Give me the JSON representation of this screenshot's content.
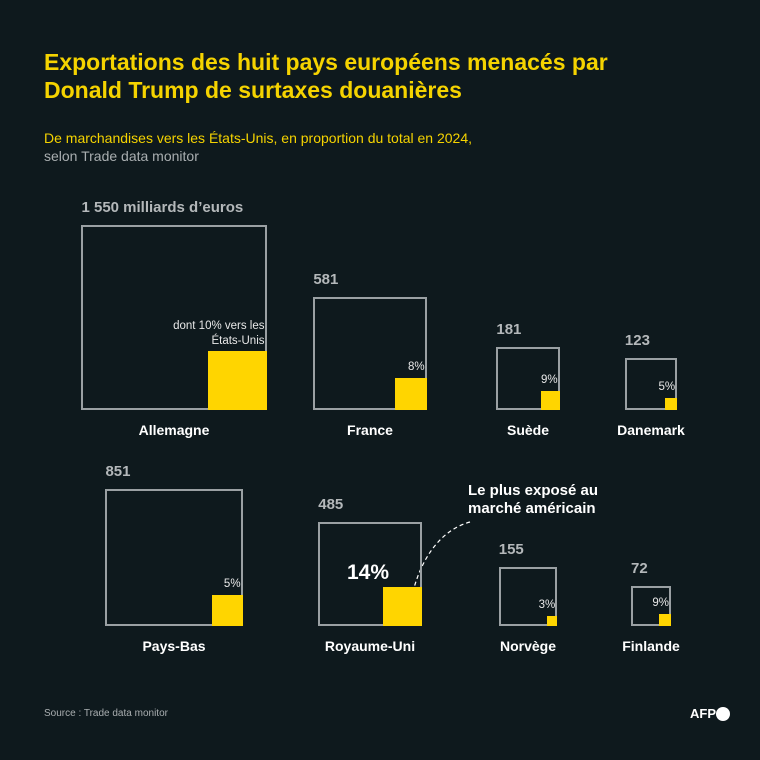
{
  "chart_data": {
    "type": "square",
    "title": "Exportations des huit pays européens menacés par Donald Trump de surtaxes douanières",
    "subtitle": "De marchandises vers les États-Unis, en proportion du total en 2024,",
    "subtitle_source": "selon Trade data monitor",
    "categories": [
      "Allemagne",
      "France",
      "Suède",
      "Danemark",
      "Pays-Bas",
      "Royaume-Uni",
      "Norvège",
      "Finlande"
    ],
    "values": [
      1550,
      581,
      181,
      123,
      851,
      485,
      155,
      72
    ],
    "value_labels": [
      "1 550 milliards d’euros",
      "581",
      "181",
      "123",
      "851",
      "485",
      "155",
      "72"
    ],
    "shares": [
      10,
      8,
      9,
      5,
      5,
      14,
      3,
      9
    ],
    "share_labels": [
      "dont 10% vers les États-Unis",
      "8%",
      "9%",
      "5%",
      "5%",
      "14%",
      "3%",
      "9%"
    ],
    "color": "#ffd500",
    "annotation": "Le plus exposé au marché américain",
    "source": "Source : Trade data monitor",
    "logo": "AFP"
  }
}
